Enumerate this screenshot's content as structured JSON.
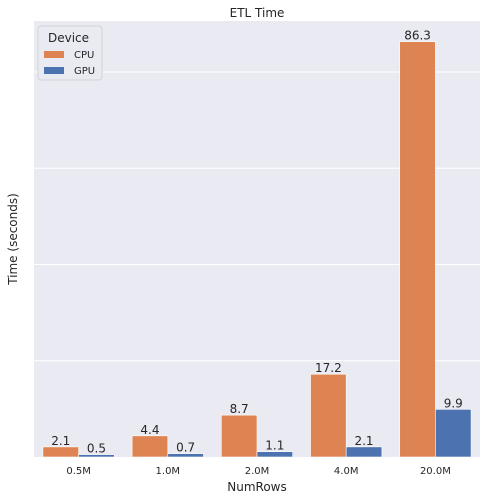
{
  "chart_data": {
    "type": "bar",
    "title": "ETL Time",
    "xlabel": "NumRows",
    "ylabel": "Time (seconds)",
    "categories": [
      "0.5M",
      "1.0M",
      "2.0M",
      "4.0M",
      "20.0M"
    ],
    "series": [
      {
        "name": "CPU",
        "color": "#dd8452",
        "values": [
          2.1,
          4.4,
          8.7,
          17.2,
          86.3
        ],
        "labels": [
          "2.1",
          "4.4",
          "8.7",
          "17.2",
          "86.3"
        ]
      },
      {
        "name": "GPU",
        "color": "#4c72b0",
        "values": [
          0.5,
          0.7,
          1.1,
          2.1,
          9.9
        ],
        "labels": [
          "0.5",
          "0.7",
          "1.1",
          "2.1",
          "9.9"
        ]
      }
    ],
    "legend": {
      "title": "Device",
      "placement": "top-left"
    },
    "ylim": [
      0,
      90.6
    ],
    "y_gridlines": [
      20,
      40,
      60,
      80
    ],
    "y_ticks_visible": false,
    "grid": true
  }
}
